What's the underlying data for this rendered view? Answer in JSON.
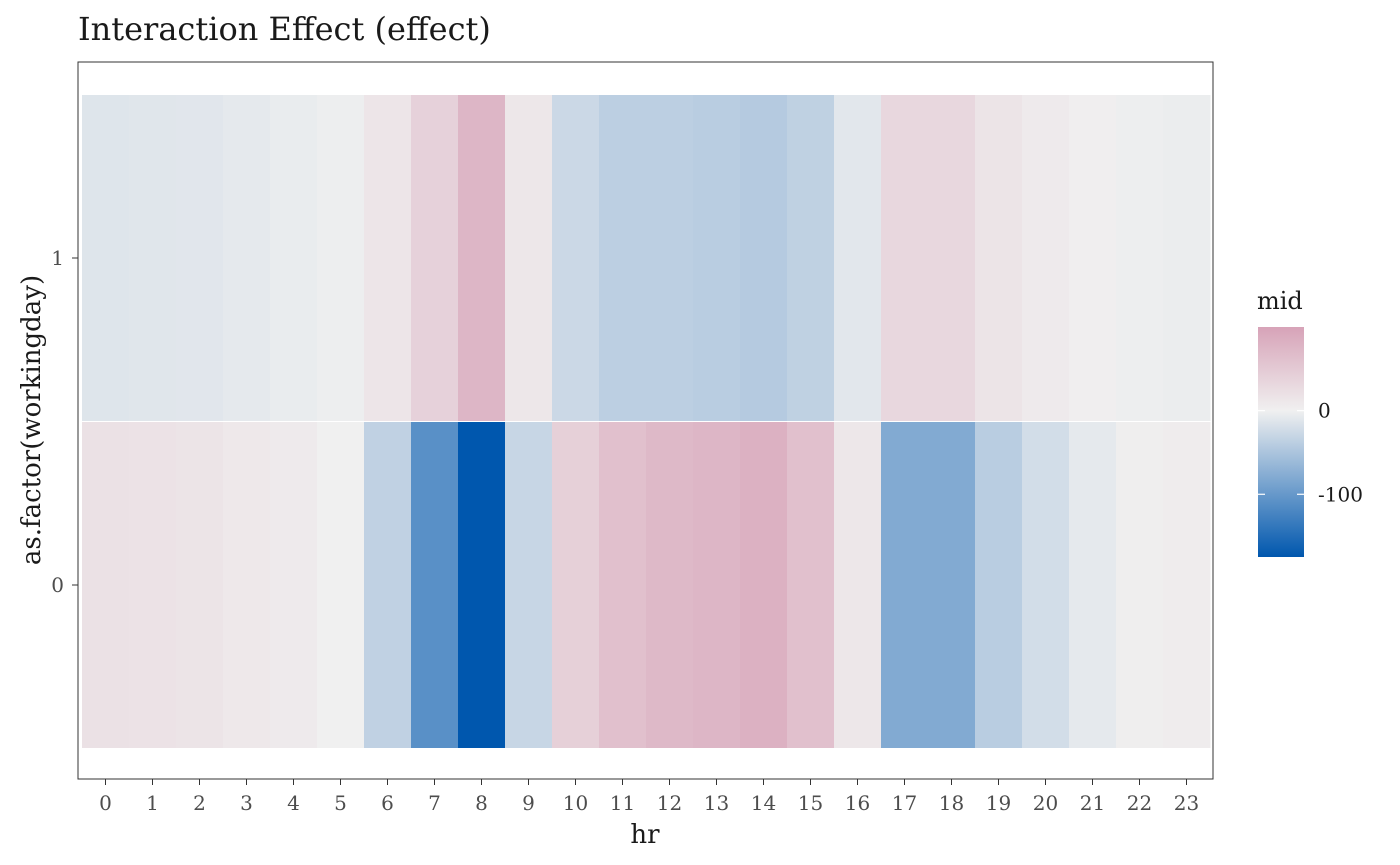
{
  "chart_data": {
    "type": "heatmap",
    "title": "Interaction Effect (effect)",
    "xlabel": "hr",
    "ylabel": "as.factor(workingday)",
    "x": [
      "0",
      "1",
      "2",
      "3",
      "4",
      "5",
      "6",
      "7",
      "8",
      "9",
      "10",
      "11",
      "12",
      "13",
      "14",
      "15",
      "16",
      "17",
      "18",
      "19",
      "20",
      "21",
      "22",
      "23"
    ],
    "y": [
      "0",
      "1"
    ],
    "values": {
      "1": [
        -13,
        -12,
        -11,
        -8,
        -5,
        -2,
        14,
        40,
        75,
        12,
        -27,
        -38,
        -38,
        -40,
        -43,
        -36,
        -10,
        32,
        32,
        16,
        8,
        2,
        -2,
        -4
      ],
      "0": [
        20,
        18,
        16,
        10,
        8,
        0,
        -35,
        -110,
        -175,
        -30,
        42,
        62,
        72,
        75,
        82,
        62,
        12,
        -80,
        -80,
        -40,
        -22,
        -8,
        3,
        5
      ]
    },
    "legend": {
      "title": "mid",
      "ticks": [
        0,
        -100
      ],
      "range": [
        -175,
        100
      ],
      "colors": {
        "low": "#0057AE",
        "mid": "#F0F0F0",
        "high": "#D7A3B8"
      }
    }
  }
}
